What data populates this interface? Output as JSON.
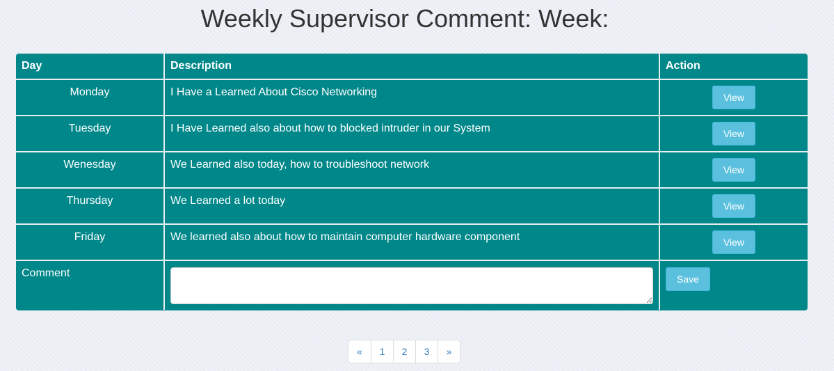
{
  "page": {
    "title": "Weekly Supervisor Comment: Week:"
  },
  "table": {
    "headers": [
      "Day",
      "Description",
      "Action"
    ],
    "rows": [
      {
        "day": "Monday",
        "description": "I Have a Learned About Cisco Networking",
        "action": "View"
      },
      {
        "day": "Tuesday",
        "description": "I Have Learned also about how to blocked intruder in our System",
        "action": "View"
      },
      {
        "day": "Wenesday",
        "description": "We Learned also today, how to troubleshoot network",
        "action": "View"
      },
      {
        "day": "Thursday",
        "description": "We Learned a lot today",
        "action": "View"
      },
      {
        "day": "Friday",
        "description": "We learned also about how to maintain computer hardware component",
        "action": "View"
      }
    ],
    "comment": {
      "label": "Comment",
      "value": "",
      "placeholder": "",
      "save_label": "Save"
    }
  },
  "pagination": {
    "prev": "«",
    "pages": [
      "1",
      "2",
      "3"
    ],
    "next": "»"
  },
  "colors": {
    "table_bg": "#00878a",
    "button": "#5bc0de",
    "link": "#337ab7"
  }
}
